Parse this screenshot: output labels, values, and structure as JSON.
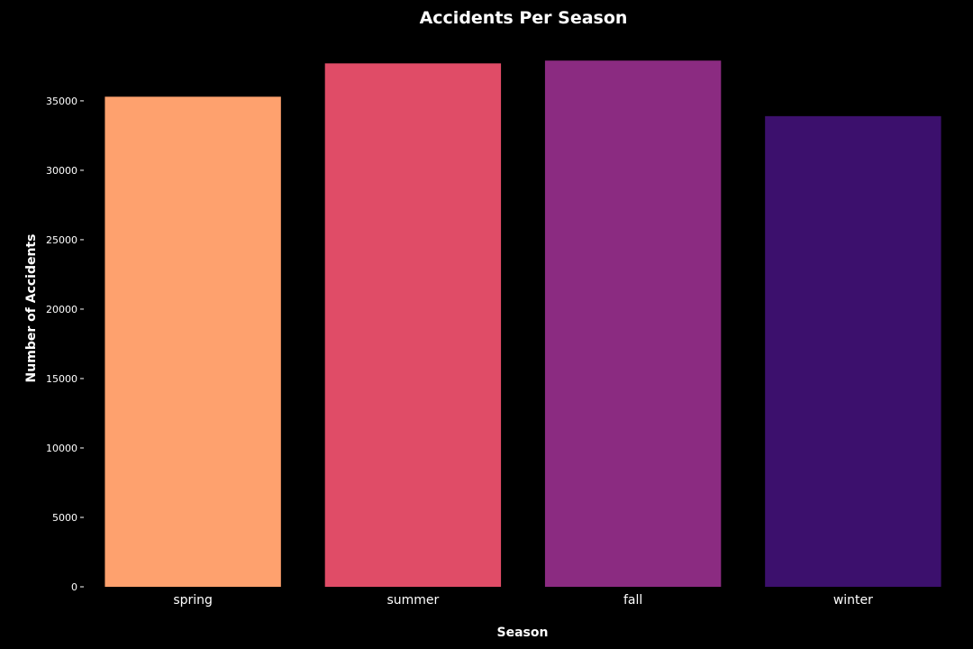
{
  "chart_data": {
    "type": "bar",
    "title": "Accidents Per Season",
    "xlabel": "Season",
    "ylabel": "Number of Accidents",
    "categories": [
      "spring",
      "summer",
      "fall",
      "winter"
    ],
    "values": [
      35300,
      37700,
      37900,
      33900
    ],
    "colors": [
      "#fea16e",
      "#e04c67",
      "#8b2b81",
      "#3c106d"
    ],
    "ylim": [
      0,
      38500
    ],
    "yticks": [
      0,
      5000,
      10000,
      15000,
      20000,
      25000,
      30000,
      35000
    ],
    "ytick_labels": [
      "0",
      "5000",
      "10000",
      "15000",
      "20000",
      "25000",
      "30000",
      "35000"
    ],
    "grid": false,
    "background": "#000000",
    "text_color": "#ffffff"
  }
}
